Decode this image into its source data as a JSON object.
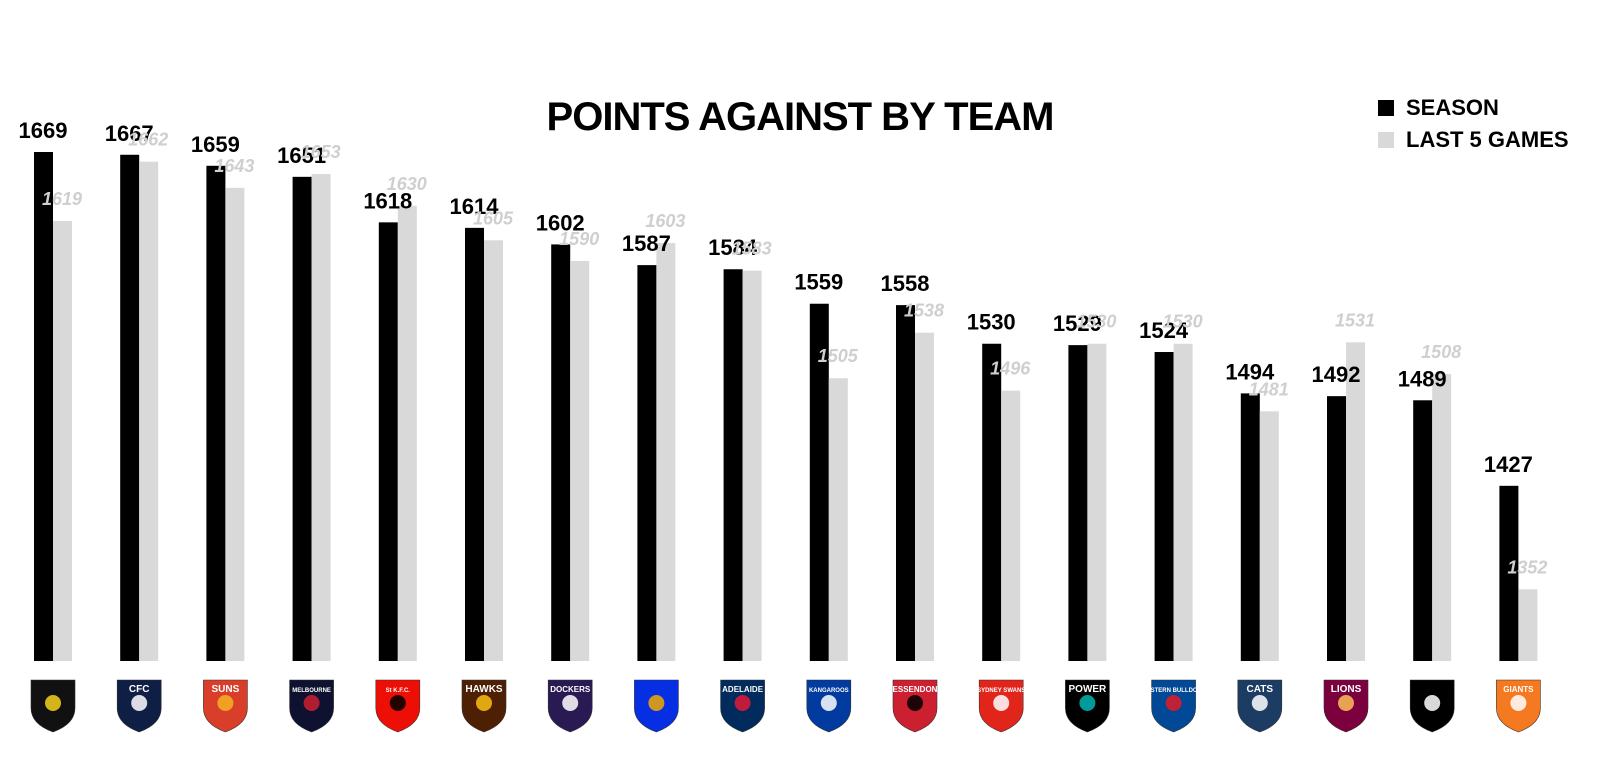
{
  "chart_data": {
    "type": "bar",
    "title": "POINTS AGAINST BY TEAM",
    "legend": {
      "placement": "top-right"
    },
    "ylim": [
      1300,
      1690
    ],
    "grid": false,
    "categories": [
      "Richmond",
      "Carlton",
      "Gold Coast",
      "Melbourne",
      "St Kilda",
      "Hawthorn",
      "Fremantle",
      "West Coast",
      "Adelaide",
      "North Melbourne",
      "Essendon",
      "Sydney",
      "Port Adelaide",
      "Western Bulldogs",
      "Geelong",
      "Brisbane",
      "Collingwood",
      "GWS"
    ],
    "series": [
      {
        "name": "SEASON",
        "color": "#000000",
        "values": [
          1669,
          1667,
          1659,
          1651,
          1618,
          1614,
          1602,
          1587,
          1584,
          1559,
          1558,
          1530,
          1529,
          1524,
          1494,
          1492,
          1489,
          1427
        ]
      },
      {
        "name": "LAST 5 GAMES",
        "color": "#d9d9d9",
        "values": [
          1619,
          1662,
          1643,
          1653,
          1630,
          1605,
          1590,
          1603,
          1583,
          1505,
          1538,
          1496,
          1530,
          1530,
          1481,
          1531,
          1508,
          1352
        ]
      }
    ]
  },
  "logos": [
    {
      "team": "Richmond",
      "icon": "tiger-logo",
      "text": "",
      "bg": "#111111",
      "fg": "#f6d21b"
    },
    {
      "team": "Carlton",
      "icon": "carlton-logo",
      "text": "CFC",
      "bg": "#0e1e44",
      "fg": "#ffffff"
    },
    {
      "team": "Gold Coast",
      "icon": "suns-logo",
      "text": "SUNS",
      "bg": "#d93e2b",
      "fg": "#f4b223"
    },
    {
      "team": "Melbourne",
      "icon": "melbourne-logo",
      "text": "MELBOURNE",
      "bg": "#0f1131",
      "fg": "#cc2031"
    },
    {
      "team": "St Kilda",
      "icon": "stkilda-logo",
      "text": "St K.F.C.",
      "bg": "#ed0f05",
      "fg": "#000000"
    },
    {
      "team": "Hawthorn",
      "icon": "hawks-logo",
      "text": "HAWKS",
      "bg": "#4d2004",
      "fg": "#fbbf15"
    },
    {
      "team": "Fremantle",
      "icon": "dockers-logo",
      "text": "DOCKERS",
      "bg": "#2a1a54",
      "fg": "#ffffff"
    },
    {
      "team": "West Coast",
      "icon": "eagles-logo",
      "text": "",
      "bg": "#062ee2",
      "fg": "#f2a900"
    },
    {
      "team": "Adelaide",
      "icon": "crows-logo",
      "text": "ADELAIDE",
      "bg": "#002b5c",
      "fg": "#e21937"
    },
    {
      "team": "North Melbourne",
      "icon": "kangaroos-logo",
      "text": "KANGAROOS",
      "bg": "#013b9f",
      "fg": "#ffffff"
    },
    {
      "team": "Essendon",
      "icon": "essendon-logo",
      "text": "ESSENDON",
      "bg": "#cc2031",
      "fg": "#000000"
    },
    {
      "team": "Sydney",
      "icon": "swans-logo",
      "text": "SYDNEY SWANS",
      "bg": "#e1251b",
      "fg": "#ffffff"
    },
    {
      "team": "Port Adelaide",
      "icon": "power-logo",
      "text": "POWER",
      "bg": "#000000",
      "fg": "#01b5b6"
    },
    {
      "team": "Western Bulldogs",
      "icon": "bulldogs-logo",
      "text": "WESTERN BULLDOGS",
      "bg": "#014896",
      "fg": "#e31b23"
    },
    {
      "team": "Geelong",
      "icon": "cats-logo",
      "text": "CATS",
      "bg": "#1c3c63",
      "fg": "#ffffff"
    },
    {
      "team": "Brisbane",
      "icon": "lions-logo",
      "text": "LIONS",
      "bg": "#7c003e",
      "fg": "#fdbe57"
    },
    {
      "team": "Collingwood",
      "icon": "magpies-logo",
      "text": "",
      "bg": "#000000",
      "fg": "#ffffff"
    },
    {
      "team": "GWS",
      "icon": "giants-logo",
      "text": "GIANTS",
      "bg": "#f47920",
      "fg": "#ffffff"
    }
  ]
}
